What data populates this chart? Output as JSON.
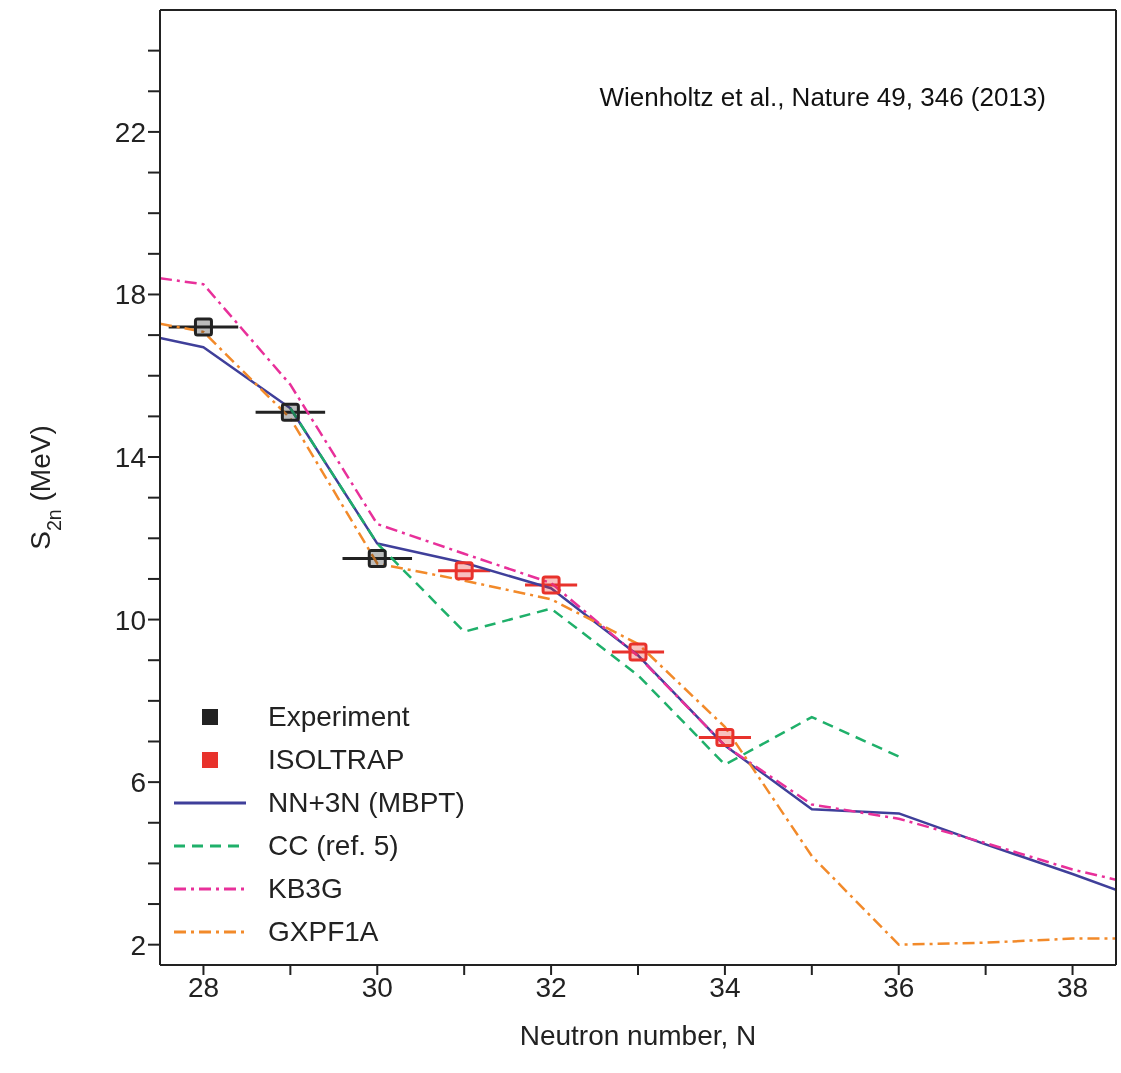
{
  "chart_data": {
    "type": "line",
    "xlabel": "Neutron number, N",
    "ylabel": "S$_{2n}$ (MeV)",
    "annotations": [
      "Wienholtz et al., Nature 49, 346 (2013)"
    ],
    "xlim": [
      27.5,
      38.5
    ],
    "ylim": [
      1.5,
      25
    ],
    "xticks": [
      28,
      {
        "value": 29,
        "label": null
      },
      30,
      {
        "value": 31,
        "label": null
      },
      32,
      {
        "value": 33,
        "label": null
      },
      34,
      {
        "value": 35,
        "label": null
      },
      36,
      {
        "value": 37,
        "label": null
      },
      38
    ],
    "yticks": [
      2,
      {
        "value": 3,
        "label": null
      },
      {
        "value": 4,
        "label": null
      },
      {
        "value": 5,
        "label": null
      },
      6,
      {
        "value": 7,
        "label": null
      },
      {
        "value": 8,
        "label": null
      },
      {
        "value": 9,
        "label": null
      },
      10,
      {
        "value": 11,
        "label": null
      },
      {
        "value": 12,
        "label": null
      },
      {
        "value": 13,
        "label": null
      },
      14,
      {
        "value": 15,
        "label": null
      },
      {
        "value": 16,
        "label": null
      },
      {
        "value": 17,
        "label": null
      },
      18,
      {
        "value": 19,
        "label": null
      },
      {
        "value": 20,
        "label": null
      },
      {
        "value": 21,
        "label": null
      },
      22,
      {
        "value": 23,
        "label": null
      },
      {
        "value": 24,
        "label": null
      }
    ],
    "grid": false,
    "legend": "bottom left",
    "series": [
      {
        "name": "Experiment",
        "type": "scatter",
        "marker": "square",
        "color": "#222222",
        "x": [
          28,
          29,
          30
        ],
        "values": [
          17.2,
          15.1,
          11.5
        ],
        "xerrors": [
          0.4,
          0.4,
          0.4
        ]
      },
      {
        "name": "ISOLTRAP",
        "type": "scatter",
        "marker": "square",
        "color": "#e8322c",
        "x": [
          31,
          32,
          33,
          34
        ],
        "values": [
          11.2,
          10.85,
          9.2,
          7.1
        ],
        "xerrors": [
          0.3,
          0.3,
          0.3,
          0.3
        ]
      },
      {
        "name": "NN+3N (MBPT)",
        "line_style": "solid",
        "color": "#3f3f9a",
        "x": [
          27.5,
          28,
          29,
          30,
          31,
          32,
          33,
          34,
          35,
          36,
          37,
          38,
          38.5
        ],
        "values": [
          16.93,
          16.7,
          15.2,
          11.87,
          11.4,
          10.77,
          9.12,
          6.9,
          5.33,
          5.23,
          4.47,
          3.74,
          3.35
        ]
      },
      {
        "name": "CC (ref. 5)",
        "line_style": "dashed",
        "color": "#1fb06a",
        "x": [
          29,
          30,
          31,
          32,
          33,
          34,
          35,
          36
        ],
        "values": [
          15.2,
          11.87,
          9.7,
          10.27,
          8.63,
          6.43,
          7.6,
          6.63
        ]
      },
      {
        "name": "KB3G",
        "line_style": "dashdot",
        "color": "#e8309a",
        "x": [
          27.5,
          28,
          29,
          30,
          31,
          32,
          33,
          34,
          35,
          36,
          37,
          38,
          38.5
        ],
        "values": [
          18.4,
          18.25,
          15.78,
          12.35,
          11.62,
          10.9,
          9.1,
          6.9,
          5.45,
          5.1,
          4.5,
          3.85,
          3.6
        ]
      },
      {
        "name": "GXPF1A",
        "line_style": "dashdot",
        "color": "#f28a2a",
        "x": [
          27.5,
          28,
          29,
          30,
          31,
          32,
          33,
          34,
          35,
          36,
          37,
          38,
          38.5
        ],
        "values": [
          17.28,
          17.08,
          14.95,
          11.38,
          10.96,
          10.5,
          9.4,
          7.36,
          4.18,
          2.0,
          2.05,
          2.15,
          2.15
        ]
      }
    ]
  }
}
